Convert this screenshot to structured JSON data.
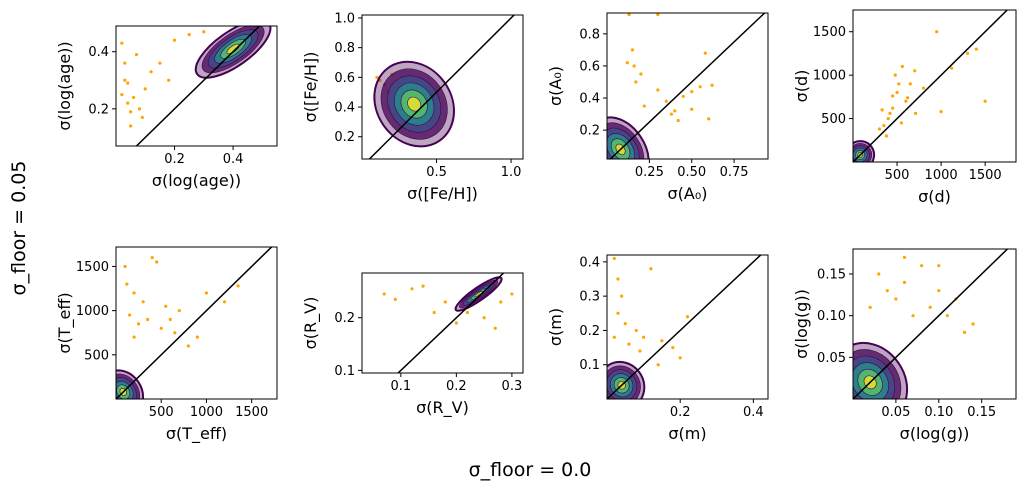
{
  "figure": {
    "supxlabel": "σ_floor = 0.0",
    "supylabel": "σ_floor = 0.05"
  },
  "colors": {
    "scatter": "#ffa500",
    "one_to_one": "#000000",
    "contour_outer": "#440154",
    "contour_mid": "#3b528b",
    "contour_inner": "#21918c",
    "contour_core": "#5ec962",
    "contour_peak": "#fde725"
  },
  "chart_data": [
    {
      "type": "scatter",
      "param": "log_age",
      "xlabel": "σ(log(age))",
      "ylabel": "σ(log(age))",
      "xlim": [
        0.0,
        0.55
      ],
      "ylim": [
        0.07,
        0.49
      ],
      "xticks": [
        0.2,
        0.4
      ],
      "yticks": [
        0.2,
        0.4
      ],
      "xtick_labels": [
        "0.2",
        "0.4"
      ],
      "ytick_labels": [
        "0.2",
        "0.4"
      ],
      "one_to_one": true,
      "contour_peak": [
        0.4,
        0.41
      ],
      "contour_spread": [
        0.15,
        0.06
      ],
      "outliers": [
        [
          0.02,
          0.25
        ],
        [
          0.03,
          0.3
        ],
        [
          0.04,
          0.22
        ],
        [
          0.05,
          0.19
        ],
        [
          0.06,
          0.24
        ],
        [
          0.03,
          0.36
        ],
        [
          0.08,
          0.2
        ],
        [
          0.1,
          0.27
        ],
        [
          0.05,
          0.14
        ],
        [
          0.12,
          0.33
        ],
        [
          0.02,
          0.43
        ],
        [
          0.07,
          0.39
        ],
        [
          0.15,
          0.36
        ],
        [
          0.09,
          0.17
        ],
        [
          0.04,
          0.29
        ],
        [
          0.2,
          0.44
        ],
        [
          0.25,
          0.46
        ],
        [
          0.18,
          0.3
        ],
        [
          0.3,
          0.47
        ]
      ]
    },
    {
      "type": "scatter",
      "param": "feh",
      "xlabel": "σ([Fe/H])",
      "ylabel": "σ([Fe/H])",
      "xlim": [
        0.0,
        1.08
      ],
      "ylim": [
        0.05,
        1.02
      ],
      "xticks": [
        0.5,
        1.0
      ],
      "yticks": [
        0.2,
        0.4,
        0.6,
        0.8,
        1.0
      ],
      "xtick_labels": [
        "0.5",
        "1.0"
      ],
      "ytick_labels": [
        "0.2",
        "0.4",
        "0.6",
        "0.8",
        "1.0"
      ],
      "one_to_one": true,
      "contour_peak": [
        0.35,
        0.42
      ],
      "contour_spread": [
        0.25,
        0.3
      ],
      "outliers": [
        [
          0.1,
          0.6
        ],
        [
          0.15,
          0.55
        ],
        [
          0.2,
          0.62
        ],
        [
          0.12,
          0.58
        ],
        [
          0.18,
          0.5
        ]
      ]
    },
    {
      "type": "scatter",
      "param": "A0",
      "xlabel": "σ(A₀)",
      "ylabel": "σ(A₀)",
      "xlim": [
        0.0,
        0.95
      ],
      "ylim": [
        0.02,
        0.93
      ],
      "xticks": [
        0.25,
        0.5,
        0.75
      ],
      "yticks": [
        0.2,
        0.4,
        0.6,
        0.8
      ],
      "xtick_labels": [
        "0.25",
        "0.50",
        "0.75"
      ],
      "ytick_labels": [
        "0.2",
        "0.4",
        "0.6",
        "0.8"
      ],
      "one_to_one": true,
      "contour_peak": [
        0.08,
        0.08
      ],
      "contour_spread": [
        0.14,
        0.22
      ],
      "outliers": [
        [
          0.13,
          0.92
        ],
        [
          0.3,
          0.92
        ],
        [
          0.15,
          0.7
        ],
        [
          0.12,
          0.62
        ],
        [
          0.16,
          0.6
        ],
        [
          0.2,
          0.55
        ],
        [
          0.35,
          0.38
        ],
        [
          0.4,
          0.32
        ],
        [
          0.45,
          0.41
        ],
        [
          0.5,
          0.44
        ],
        [
          0.55,
          0.47
        ],
        [
          0.6,
          0.27
        ],
        [
          0.62,
          0.48
        ],
        [
          0.58,
          0.68
        ],
        [
          0.17,
          0.5
        ],
        [
          0.3,
          0.45
        ],
        [
          0.22,
          0.35
        ],
        [
          0.38,
          0.3
        ],
        [
          0.42,
          0.26
        ],
        [
          0.5,
          0.33
        ]
      ]
    },
    {
      "type": "scatter",
      "param": "distance",
      "xlabel": "σ(d)",
      "ylabel": "σ(d)",
      "xlim": [
        0,
        1850
      ],
      "ylim": [
        0,
        1750
      ],
      "xticks": [
        500,
        1000,
        1500
      ],
      "yticks": [
        500,
        1000,
        1500
      ],
      "xtick_labels": [
        "500",
        "1000",
        "1500"
      ],
      "ytick_labels": [
        "500",
        "1000",
        "1500"
      ],
      "one_to_one": true,
      "contour_peak": [
        80,
        80
      ],
      "contour_spread": [
        160,
        160
      ],
      "outliers": [
        [
          400,
          500
        ],
        [
          350,
          420
        ],
        [
          450,
          620
        ],
        [
          500,
          800
        ],
        [
          520,
          900
        ],
        [
          600,
          700
        ],
        [
          300,
          380
        ],
        [
          380,
          300
        ],
        [
          420,
          560
        ],
        [
          550,
          450
        ],
        [
          650,
          900
        ],
        [
          700,
          1050
        ],
        [
          800,
          850
        ],
        [
          950,
          1500
        ],
        [
          1300,
          1250
        ],
        [
          1400,
          1300
        ],
        [
          1500,
          700
        ],
        [
          1120,
          1080
        ],
        [
          480,
          1000
        ],
        [
          560,
          1100
        ],
        [
          620,
          740
        ],
        [
          450,
          760
        ],
        [
          330,
          600
        ],
        [
          710,
          560
        ],
        [
          1000,
          580
        ]
      ]
    },
    {
      "type": "scatter",
      "param": "Teff",
      "xlabel": "σ(T_eff)",
      "ylabel": "σ(T_eff)",
      "xlim": [
        0,
        1780
      ],
      "ylim": [
        0,
        1720
      ],
      "xticks": [
        500,
        1000,
        1500
      ],
      "yticks": [
        500,
        1000,
        1500
      ],
      "xtick_labels": [
        "500",
        "1000",
        "1500"
      ],
      "ytick_labels": [
        "500",
        "1000",
        "1500"
      ],
      "one_to_one": true,
      "contour_peak": [
        80,
        80
      ],
      "contour_spread": [
        200,
        260
      ],
      "outliers": [
        [
          100,
          1500
        ],
        [
          200,
          1200
        ],
        [
          300,
          1100
        ],
        [
          400,
          1600
        ],
        [
          150,
          950
        ],
        [
          250,
          850
        ],
        [
          350,
          900
        ],
        [
          500,
          800
        ],
        [
          600,
          900
        ],
        [
          700,
          1000
        ],
        [
          900,
          700
        ],
        [
          1000,
          1200
        ],
        [
          1200,
          1100
        ],
        [
          1350,
          1280
        ],
        [
          800,
          600
        ],
        [
          200,
          700
        ],
        [
          450,
          1550
        ],
        [
          550,
          1050
        ],
        [
          650,
          750
        ],
        [
          120,
          1300
        ]
      ]
    },
    {
      "type": "scatter",
      "param": "Rv",
      "xlabel": "σ(R_V)",
      "ylabel": "σ(R_V)",
      "xlim": [
        0.03,
        0.32
      ],
      "ylim": [
        0.095,
        0.285
      ],
      "xticks": [
        0.1,
        0.2,
        0.3
      ],
      "yticks": [
        0.1,
        0.2
      ],
      "xtick_labels": [
        "0.1",
        "0.2",
        "0.3"
      ],
      "ytick_labels": [
        "0.1",
        "0.2"
      ],
      "one_to_one": true,
      "contour_peak": [
        0.24,
        0.245
      ],
      "contour_spread": [
        0.05,
        0.012
      ],
      "outliers": [
        [
          0.07,
          0.245
        ],
        [
          0.09,
          0.235
        ],
        [
          0.12,
          0.255
        ],
        [
          0.14,
          0.26
        ],
        [
          0.2,
          0.19
        ],
        [
          0.22,
          0.21
        ],
        [
          0.25,
          0.2
        ],
        [
          0.28,
          0.23
        ],
        [
          0.3,
          0.245
        ],
        [
          0.16,
          0.21
        ],
        [
          0.27,
          0.18
        ],
        [
          0.18,
          0.23
        ]
      ]
    },
    {
      "type": "scatter",
      "param": "mass",
      "xlabel": "σ(m)",
      "ylabel": "σ(m)",
      "xlim": [
        0.0,
        0.44
      ],
      "ylim": [
        0.0,
        0.42
      ],
      "xticks": [
        0.2,
        0.4
      ],
      "yticks": [
        0.1,
        0.2,
        0.3,
        0.4
      ],
      "xtick_labels": [
        "0.2",
        "0.4"
      ],
      "ytick_labels": [
        "0.1",
        "0.2",
        "0.3",
        "0.4"
      ],
      "one_to_one": true,
      "contour_peak": [
        0.04,
        0.04
      ],
      "contour_spread": [
        0.06,
        0.07
      ],
      "outliers": [
        [
          0.02,
          0.41
        ],
        [
          0.03,
          0.35
        ],
        [
          0.04,
          0.3
        ],
        [
          0.03,
          0.25
        ],
        [
          0.05,
          0.22
        ],
        [
          0.08,
          0.2
        ],
        [
          0.1,
          0.18
        ],
        [
          0.15,
          0.17
        ],
        [
          0.18,
          0.15
        ],
        [
          0.2,
          0.12
        ],
        [
          0.22,
          0.24
        ],
        [
          0.12,
          0.38
        ],
        [
          0.06,
          0.16
        ],
        [
          0.14,
          0.1
        ],
        [
          0.02,
          0.18
        ],
        [
          0.09,
          0.14
        ]
      ]
    },
    {
      "type": "scatter",
      "param": "logg",
      "xlabel": "σ(log(g))",
      "ylabel": "σ(log(g))",
      "xlim": [
        0.0,
        0.19
      ],
      "ylim": [
        0.0,
        0.18
      ],
      "xticks": [
        0.05,
        0.1,
        0.15
      ],
      "yticks": [
        0.05,
        0.1,
        0.15
      ],
      "xtick_labels": [
        "0.05",
        "0.10",
        "0.15"
      ],
      "ytick_labels": [
        "0.05",
        "0.10",
        "0.15"
      ],
      "one_to_one": true,
      "contour_peak": [
        0.02,
        0.02
      ],
      "contour_spread": [
        0.04,
        0.05
      ],
      "outliers": [
        [
          0.03,
          0.15
        ],
        [
          0.04,
          0.13
        ],
        [
          0.05,
          0.12
        ],
        [
          0.06,
          0.14
        ],
        [
          0.08,
          0.16
        ],
        [
          0.1,
          0.13
        ],
        [
          0.12,
          0.12
        ],
        [
          0.14,
          0.09
        ],
        [
          0.11,
          0.1
        ],
        [
          0.09,
          0.11
        ],
        [
          0.07,
          0.1
        ],
        [
          0.02,
          0.11
        ],
        [
          0.13,
          0.08
        ],
        [
          0.06,
          0.17
        ],
        [
          0.1,
          0.16
        ]
      ]
    }
  ]
}
